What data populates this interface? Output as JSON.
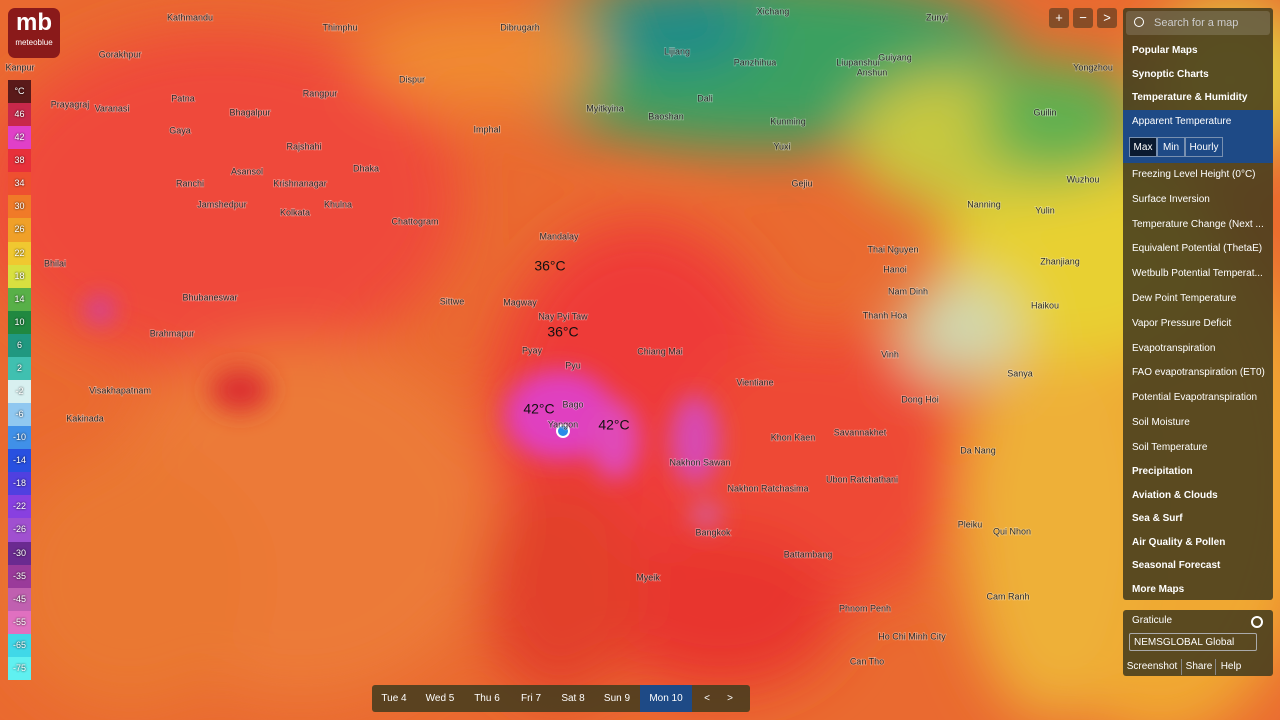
{
  "logo": {
    "mark": "mb",
    "brand": "meteoblue"
  },
  "legend": {
    "unit": "°C",
    "entries": [
      {
        "value": 46,
        "color": "#c8284a"
      },
      {
        "value": 42,
        "color": "#e040c8"
      },
      {
        "value": 38,
        "color": "#e8303a"
      },
      {
        "value": 34,
        "color": "#ee5030"
      },
      {
        "value": 30,
        "color": "#f07a28"
      },
      {
        "value": 26,
        "color": "#f0a028"
      },
      {
        "value": 22,
        "color": "#f0c830"
      },
      {
        "value": 18,
        "color": "#d8e040"
      },
      {
        "value": 14,
        "color": "#58b048"
      },
      {
        "value": 10,
        "color": "#208840"
      },
      {
        "value": 6,
        "color": "#209880"
      },
      {
        "value": 2,
        "color": "#40c0b0"
      },
      {
        "value": -2,
        "color": "#d8f0f0"
      },
      {
        "value": -6,
        "color": "#90c8f0"
      },
      {
        "value": -10,
        "color": "#4090e8"
      },
      {
        "value": -14,
        "color": "#2850e0"
      },
      {
        "value": -18,
        "color": "#5040e0"
      },
      {
        "value": -22,
        "color": "#8840e0"
      },
      {
        "value": -26,
        "color": "#a050d0"
      },
      {
        "value": -30,
        "color": "#6a2a90"
      },
      {
        "value": -35,
        "color": "#9a3a9a"
      },
      {
        "value": -45,
        "color": "#c060b0"
      },
      {
        "value": -55,
        "color": "#e070c0"
      },
      {
        "value": -65,
        "color": "#40d8e8"
      },
      {
        "value": -75,
        "color": "#60f0f0"
      }
    ]
  },
  "places": [
    "Kathmandu",
    "Thimphu",
    "Dibrugarh",
    "Xichang",
    "Zunyi",
    "Gorakhpur",
    "Lijiang",
    "Panzhihua",
    "Liupanshui",
    "Guiyang",
    "Yongzhou",
    "Kanpur",
    "Prayagraj",
    "Varanasi",
    "Patna",
    "Bhagalpur",
    "Rangpur",
    "Dispur",
    "Myitkyina",
    "Dali",
    "Baoshan",
    "Kunming",
    "Anshun",
    "Guilin",
    "Gaya",
    "Imphal",
    "Rajshahi",
    "Dhaka",
    "Yuxi",
    "Ranchi",
    "Asansol",
    "Krishnanagar",
    "Gejiu",
    "Wuzhou",
    "Jamshedpur",
    "Kolkata",
    "Khulna",
    "Chattogram",
    "Nanning",
    "Yulin",
    "Bhilai",
    "Mandalay",
    "Thai Nguyen",
    "Zhanjiang",
    "Hanoi",
    "Nam Dinh",
    "Bhubaneswar",
    "Magway",
    "Sittwe",
    "Nay Pyi Taw",
    "Thanh Hoa",
    "Haikou",
    "Brahmapur",
    "Pyay",
    "Chiang Mai",
    "Vinh",
    "Pyu",
    "Sanya",
    "Visakhapatnam",
    "Vientiane",
    "Dong Hoi",
    "Bago",
    "Kakinada",
    "Yangon",
    "Khon Kaen",
    "Savannakhet",
    "Da Nang",
    "Nakhon Sawan",
    "Ubon Ratchathani",
    "Nakhon Ratchasima",
    "Pleiku",
    "Bangkok",
    "Qui Nhon",
    "Battambang",
    "Myeik",
    "Cam Ranh",
    "Phnom Penh",
    "Ho Chi Minh City",
    "Can Tho"
  ],
  "annotations": [
    "36°C",
    "36°C",
    "42°C",
    "42°C"
  ],
  "map_controls": [
    "+",
    "−",
    ">"
  ],
  "menu": {
    "search_placeholder": "Search for a map",
    "groups_top": [
      "Popular Maps",
      "Synoptic Charts",
      "Temperature & Humidity"
    ],
    "selected": "Apparent Temperature",
    "modes": [
      "Max",
      "Min",
      "Hourly"
    ],
    "items": [
      "Freezing Level Height (0°C)",
      "Surface Inversion",
      "Temperature Change (Next ...",
      "Equivalent Potential (ThetaE)",
      "Wetbulb Potential Temperat...",
      "Dew Point Temperature",
      "Vapor Pressure Deficit",
      "Evapotranspiration",
      "FAO evapotranspiration (ET0)",
      "Potential Evapotranspiration",
      "Soil Moisture",
      "Soil Temperature"
    ],
    "groups_bottom": [
      "Precipitation",
      "Aviation & Clouds",
      "Sea & Surf",
      "Air Quality & Pollen",
      "Seasonal Forecast",
      "More Maps"
    ]
  },
  "settings": {
    "graticule": "Graticule",
    "model": "NEMSGLOBAL Global",
    "actions": [
      "Screenshot",
      "Share",
      "Help"
    ]
  },
  "timeline": {
    "days": [
      "Tue 4",
      "Wed 5",
      "Thu 6",
      "Fri 7",
      "Sat 8",
      "Sun 9",
      "Mon 10"
    ],
    "selected_index": 6,
    "prev": "<",
    "next": ">"
  }
}
